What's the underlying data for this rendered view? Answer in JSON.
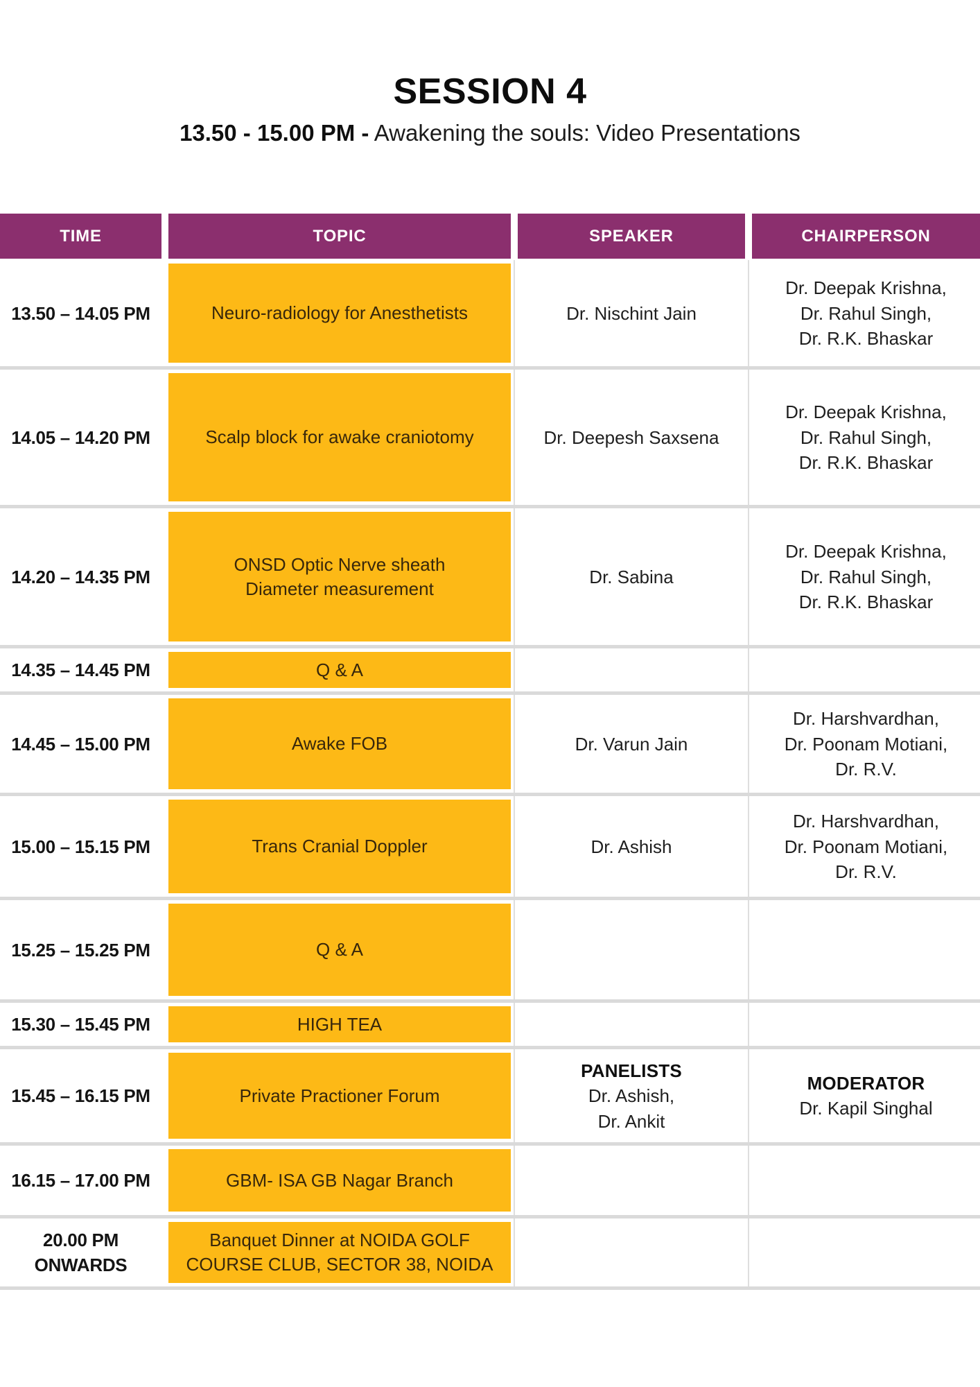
{
  "page": {
    "title": "SESSION 4",
    "subtitle_bold": "13.50 - 15.00 PM -",
    "subtitle_rest": " Awakening the souls: Video Presentations"
  },
  "table": {
    "headers": [
      "TIME",
      "TOPIC",
      "SPEAKER",
      "CHAIRPERSON"
    ],
    "rows": [
      {
        "time": [
          "13.50 – 14.05 PM"
        ],
        "topic": [
          "Neuro-radiology for Anesthetists"
        ],
        "speaker": {
          "lines": [
            "Dr. Nischint Jain"
          ]
        },
        "chairperson": {
          "lines": [
            "Dr. Deepak Krishna,",
            "Dr. Rahul Singh,",
            "Dr. R.K. Bhaskar"
          ]
        }
      },
      {
        "time": [
          "14.05 – 14.20 PM"
        ],
        "topic": [
          "Scalp block for awake craniotomy"
        ],
        "speaker": {
          "lines": [
            "Dr. Deepesh Saxsena"
          ]
        },
        "chairperson": {
          "lines": [
            "Dr. Deepak Krishna,",
            "Dr. Rahul Singh,",
            "Dr. R.K. Bhaskar"
          ]
        }
      },
      {
        "time": [
          "14.20 – 14.35 PM"
        ],
        "topic": [
          "ONSD Optic Nerve sheath",
          "Diameter measurement"
        ],
        "speaker": {
          "lines": [
            "Dr. Sabina"
          ]
        },
        "chairperson": {
          "lines": [
            "Dr. Deepak Krishna,",
            "Dr. Rahul Singh,",
            "Dr. R.K. Bhaskar"
          ]
        }
      },
      {
        "time": [
          "14.35 – 14.45 PM"
        ],
        "topic": [
          "Q & A"
        ],
        "speaker": {
          "lines": []
        },
        "chairperson": {
          "lines": []
        }
      },
      {
        "time": [
          "14.45 – 15.00 PM"
        ],
        "topic": [
          "Awake FOB"
        ],
        "speaker": {
          "lines": [
            "Dr. Varun Jain"
          ]
        },
        "chairperson": {
          "lines": [
            "Dr. Harshvardhan,",
            "Dr. Poonam Motiani,",
            "Dr. R.V."
          ]
        }
      },
      {
        "time": [
          "15.00 – 15.15 PM"
        ],
        "topic": [
          "Trans Cranial Doppler"
        ],
        "speaker": {
          "lines": [
            "Dr. Ashish"
          ]
        },
        "chairperson": {
          "lines": [
            "Dr. Harshvardhan,",
            "Dr. Poonam Motiani,",
            "Dr. R.V."
          ]
        }
      },
      {
        "time": [
          "15.25 – 15.25 PM"
        ],
        "topic": [
          "Q & A"
        ],
        "speaker": {
          "lines": []
        },
        "chairperson": {
          "lines": []
        }
      },
      {
        "time": [
          "15.30 – 15.45 PM"
        ],
        "topic": [
          "HIGH TEA"
        ],
        "speaker": {
          "lines": []
        },
        "chairperson": {
          "lines": []
        }
      },
      {
        "time": [
          "15.45 – 16.15 PM"
        ],
        "topic": [
          "Private Practioner Forum"
        ],
        "speaker": {
          "label": "PANELISTS",
          "lines": [
            "Dr. Ashish,",
            "Dr. Ankit"
          ]
        },
        "chairperson": {
          "label": "MODERATOR",
          "lines": [
            "Dr. Kapil Singhal"
          ]
        }
      },
      {
        "time": [
          "16.15 – 17.00 PM"
        ],
        "topic": [
          "GBM- ISA GB Nagar Branch"
        ],
        "speaker": {
          "lines": []
        },
        "chairperson": {
          "lines": []
        }
      },
      {
        "time": [
          "20.00 PM",
          "ONWARDS"
        ],
        "topic": [
          "Banquet Dinner at NOIDA GOLF",
          "COURSE CLUB, SECTOR 38, NOIDA"
        ],
        "speaker": {
          "lines": []
        },
        "chairperson": {
          "lines": []
        }
      }
    ]
  },
  "colors": {
    "header_bg": "#8B2F6E",
    "header_text": "#FFFFFF",
    "topic_bg": "#FDB916",
    "topic_text": "#38270B",
    "row_divider": "#DADADA",
    "body_text": "#1F1F1F",
    "time_text": "#141414",
    "page_bg": "#FFFFFF"
  }
}
